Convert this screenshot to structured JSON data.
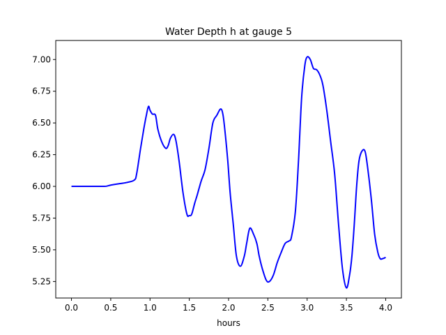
{
  "chart_data": {
    "type": "line",
    "title": "Water Depth h at gauge 5",
    "xlabel": "hours",
    "ylabel": "",
    "xlim": [
      -0.2,
      4.2
    ],
    "ylim": [
      5.12,
      7.15
    ],
    "xticks": [
      0.0,
      0.5,
      1.0,
      1.5,
      2.0,
      2.5,
      3.0,
      3.5,
      4.0
    ],
    "xtick_labels": [
      "0.0",
      "0.5",
      "1.0",
      "1.5",
      "2.0",
      "2.5",
      "3.0",
      "3.5",
      "4.0"
    ],
    "yticks": [
      5.25,
      5.5,
      5.75,
      6.0,
      6.25,
      6.5,
      6.75,
      7.0
    ],
    "ytick_labels": [
      "5.25",
      "5.50",
      "5.75",
      "6.00",
      "6.25",
      "6.50",
      "6.75",
      "7.00"
    ],
    "grid": false,
    "legend": "none",
    "series": [
      {
        "color": "#0000ff",
        "x": [
          0.0,
          0.2,
          0.4,
          0.45,
          0.5,
          0.6,
          0.7,
          0.8,
          0.83,
          0.88,
          0.92,
          0.95,
          0.98,
          1.0,
          1.03,
          1.07,
          1.1,
          1.15,
          1.2,
          1.23,
          1.26,
          1.3,
          1.33,
          1.37,
          1.42,
          1.47,
          1.5,
          1.53,
          1.57,
          1.6,
          1.65,
          1.7,
          1.75,
          1.8,
          1.85,
          1.9,
          1.93,
          1.96,
          1.99,
          2.02,
          2.06,
          2.1,
          2.15,
          2.2,
          2.23,
          2.27,
          2.32,
          2.36,
          2.39,
          2.43,
          2.48,
          2.52,
          2.57,
          2.62,
          2.67,
          2.72,
          2.77,
          2.8,
          2.85,
          2.89,
          2.93,
          2.97,
          3.0,
          3.04,
          3.08,
          3.12,
          3.16,
          3.2,
          3.25,
          3.3,
          3.35,
          3.4,
          3.45,
          3.5,
          3.54,
          3.57,
          3.6,
          3.63,
          3.66,
          3.7,
          3.74,
          3.78,
          3.82,
          3.86,
          3.9,
          3.93,
          3.96,
          4.0
        ],
        "y": [
          6.0,
          6.0,
          6.0,
          6.002,
          6.01,
          6.02,
          6.03,
          6.05,
          6.1,
          6.3,
          6.45,
          6.55,
          6.63,
          6.6,
          6.57,
          6.56,
          6.45,
          6.35,
          6.3,
          6.32,
          6.38,
          6.41,
          6.36,
          6.2,
          5.95,
          5.78,
          5.77,
          5.78,
          5.87,
          5.93,
          6.04,
          6.13,
          6.3,
          6.5,
          6.56,
          6.61,
          6.56,
          6.4,
          6.2,
          5.95,
          5.7,
          5.45,
          5.37,
          5.45,
          5.55,
          5.67,
          5.62,
          5.55,
          5.45,
          5.35,
          5.26,
          5.25,
          5.3,
          5.4,
          5.48,
          5.55,
          5.57,
          5.6,
          5.8,
          6.2,
          6.7,
          6.95,
          7.02,
          7.0,
          6.93,
          6.92,
          6.88,
          6.8,
          6.6,
          6.35,
          6.1,
          5.7,
          5.35,
          5.2,
          5.3,
          5.45,
          5.7,
          6.0,
          6.2,
          6.28,
          6.27,
          6.1,
          5.88,
          5.62,
          5.48,
          5.43,
          5.43,
          5.44
        ]
      }
    ]
  }
}
